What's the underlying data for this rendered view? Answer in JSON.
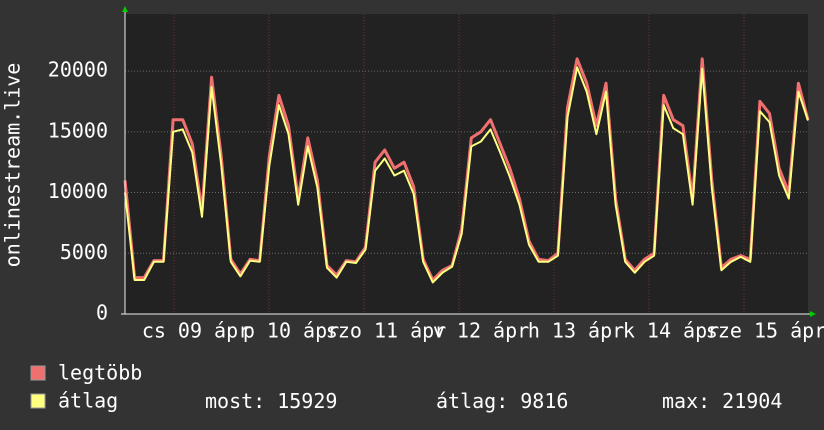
{
  "chart_data": {
    "type": "line",
    "y_label": "onlinestream.live",
    "x_labels": [
      "cs 09 ápr",
      "p 10 ápr",
      "szo 11 ápr",
      "v 12 ápr",
      "h 13 ápr",
      "k 14 ápr",
      "sze 15 ápr"
    ],
    "ylim": [
      0,
      24700
    ],
    "yticks": [
      0,
      5000,
      10000,
      15000,
      20000
    ],
    "grid": true,
    "series": [
      {
        "name": "legtöbb",
        "color": "#f07070",
        "values": [
          11000,
          3000,
          3000,
          4400,
          4400,
          16000,
          16000,
          14000,
          8500,
          19500,
          13000,
          4500,
          3300,
          4500,
          4400,
          13000,
          18000,
          15500,
          9500,
          14500,
          11000,
          4000,
          3200,
          4400,
          4300,
          5500,
          12500,
          13500,
          12000,
          12500,
          10500,
          4500,
          2800,
          3600,
          4000,
          7000,
          14500,
          15000,
          16000,
          14000,
          12000,
          9500,
          6000,
          4500,
          4400,
          5000,
          17000,
          21000,
          19000,
          15500,
          19000,
          9500,
          4500,
          3600,
          4500,
          5000,
          18000,
          16000,
          15500,
          9500,
          21000,
          11000,
          3800,
          4500,
          4800,
          4500,
          17500,
          16500,
          12000,
          10000,
          19000,
          16000
        ]
      },
      {
        "name": "átlag",
        "color": "#ffff80",
        "values": [
          10000,
          2800,
          2800,
          4300,
          4300,
          15000,
          15200,
          13300,
          8000,
          18700,
          12300,
          4300,
          3100,
          4400,
          4300,
          12200,
          17200,
          14800,
          9000,
          13800,
          10400,
          3800,
          3000,
          4300,
          4200,
          5300,
          11800,
          12800,
          11400,
          11800,
          9900,
          4300,
          2600,
          3400,
          3900,
          6600,
          13800,
          14200,
          15200,
          13300,
          11300,
          9000,
          5700,
          4300,
          4300,
          4800,
          16200,
          20300,
          18300,
          14800,
          18300,
          9000,
          4300,
          3400,
          4300,
          4800,
          17200,
          15300,
          14800,
          9000,
          20200,
          10400,
          3600,
          4300,
          4700,
          4300,
          16700,
          15800,
          11400,
          9500,
          18300,
          15929
        ]
      }
    ],
    "stats": [
      {
        "label": "most:",
        "value": 15929
      },
      {
        "label": "átlag:",
        "value": 9816
      },
      {
        "label": "max:",
        "value": 21904
      }
    ]
  }
}
